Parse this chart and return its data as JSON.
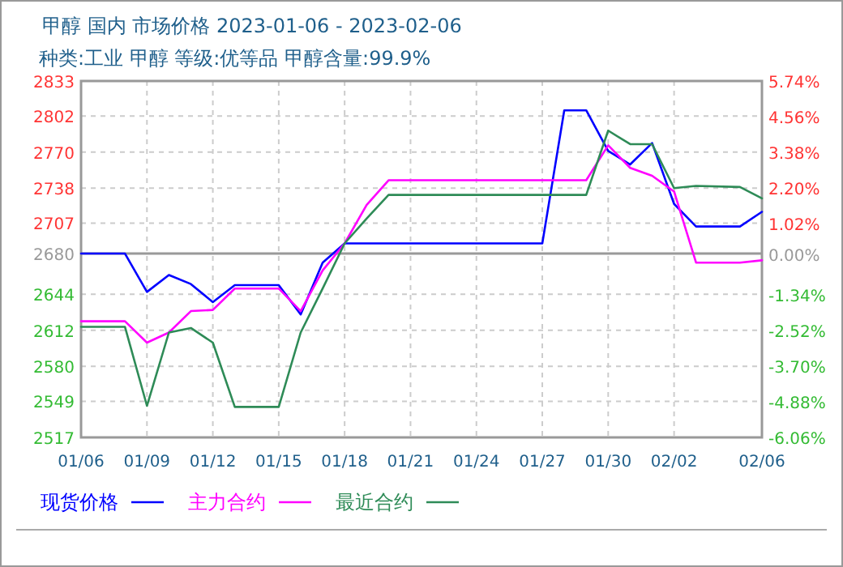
{
  "chart_data": {
    "type": "line",
    "title": "甲醇 国内 市场价格 2023-01-06 - 2023-02-06",
    "subtitle": "种类:工业 甲醇 等级:优等品 甲醇含量:99.9%",
    "x": [
      "2023-01-06",
      "2023-01-08",
      "2023-01-09",
      "2023-01-10",
      "2023-01-11",
      "2023-01-12",
      "2023-01-13",
      "2023-01-15",
      "2023-01-16",
      "2023-01-17",
      "2023-01-18",
      "2023-01-19",
      "2023-01-20",
      "2023-01-27",
      "2023-01-28",
      "2023-01-29",
      "2023-01-30",
      "2023-01-31",
      "2023-02-01",
      "2023-02-02",
      "2023-02-03",
      "2023-02-05",
      "2023-02-06"
    ],
    "series": [
      {
        "name": "现货价格",
        "color": "#0000ff",
        "values": [
          2680,
          2680,
          2646,
          2661,
          2653,
          2637,
          2652,
          2652,
          2626,
          2672,
          2689,
          2689,
          2689,
          2689,
          2807,
          2807,
          2771,
          2759,
          2778,
          2724,
          2704,
          2704,
          2717
        ]
      },
      {
        "name": "主力合约",
        "color": "#ff00ff",
        "values": [
          2620,
          2620,
          2601,
          2610,
          2629,
          2630,
          2649,
          2649,
          2629,
          2665,
          2689,
          2723,
          2745,
          2745,
          2745,
          2745,
          2776,
          2756,
          2749,
          2735,
          2672,
          2672,
          2674
        ]
      },
      {
        "name": "最近合约",
        "color": "#2e8b57",
        "values": [
          2615,
          2615,
          2545,
          2610,
          2614,
          2601,
          2544,
          2544,
          2610,
          2649,
          2689,
          2711,
          2732,
          2732,
          2732,
          2732,
          2789,
          2777,
          2777,
          2738,
          2740,
          2739,
          2729
        ]
      }
    ],
    "xlim": [
      "2023-01-06",
      "2023-02-06"
    ],
    "xticks": [
      {
        "value": "2023-01-06",
        "label": "01/06"
      },
      {
        "value": "2023-01-09",
        "label": "01/09"
      },
      {
        "value": "2023-01-12",
        "label": "01/12"
      },
      {
        "value": "2023-01-15",
        "label": "01/15"
      },
      {
        "value": "2023-01-18",
        "label": "01/18"
      },
      {
        "value": "2023-01-21",
        "label": "01/21"
      },
      {
        "value": "2023-01-24",
        "label": "01/24"
      },
      {
        "value": "2023-01-27",
        "label": "01/27"
      },
      {
        "value": "2023-01-30",
        "label": "01/30"
      },
      {
        "value": "2023-02-02",
        "label": "02/02"
      },
      {
        "value": "2023-02-06",
        "label": "02/06"
      }
    ],
    "ylim": [
      2517,
      2833
    ],
    "yticks": [
      2517,
      2549,
      2580,
      2612,
      2644,
      2680,
      2707,
      2738,
      2770,
      2802,
      2833
    ],
    "y2lim": [
      -6.06,
      5.74
    ],
    "y2ticks": [
      {
        "value": -6.06,
        "label": "-6.06%"
      },
      {
        "value": -4.88,
        "label": "-4.88%"
      },
      {
        "value": -3.7,
        "label": "-3.70%"
      },
      {
        "value": -2.52,
        "label": "-2.52%"
      },
      {
        "value": -1.34,
        "label": "-1.34%"
      },
      {
        "value": 0,
        "label": "0.00%"
      },
      {
        "value": 1.02,
        "label": "1.02%"
      },
      {
        "value": 2.2,
        "label": "2.20%"
      },
      {
        "value": 3.38,
        "label": "3.38%"
      },
      {
        "value": 4.56,
        "label": "4.56%"
      },
      {
        "value": 5.74,
        "label": "5.74%"
      }
    ],
    "ref_lines": [
      {
        "axis": "y",
        "value": 2680,
        "color": "#999999"
      }
    ],
    "grid": true,
    "legend": "bottom",
    "line_style": "solid",
    "marker": "none"
  }
}
